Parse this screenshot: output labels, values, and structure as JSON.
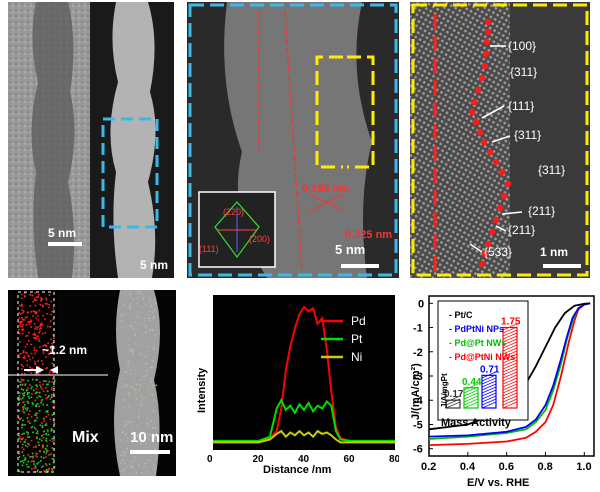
{
  "panel_a": {
    "scale_bar": "5 nm"
  },
  "panel_b": {
    "scale_bar": "5 nm"
  },
  "panel_c": {
    "scale_bar": "5 nm",
    "spacing_1": "0.195 nm",
    "spacing_2": "0.225 nm",
    "fft_labels": [
      "(220)",
      "(111)",
      "(200)"
    ]
  },
  "panel_d": {
    "scale_bar": "1 nm",
    "facets": [
      "{100}",
      "{311}",
      "{111}",
      "{311}",
      "{311}",
      "{211}",
      "{211}",
      "{533}"
    ]
  },
  "panel_e": {
    "thickness": "~1.2 nm",
    "label": "Mix"
  },
  "panel_f": {
    "scale_bar": "10 nm"
  },
  "chart_data": [
    {
      "type": "line",
      "title": "",
      "xlabel": "Distance /nm",
      "ylabel": "Intensity",
      "xlim": [
        0,
        80
      ],
      "xticks": [
        "0",
        "20",
        "40",
        "60",
        "80"
      ],
      "legend_position": "top-right",
      "series": [
        {
          "name": "Pd",
          "color": "#ff0000",
          "x": [
            0,
            10,
            20,
            25,
            28,
            30,
            32,
            34,
            36,
            38,
            40,
            42,
            44,
            46,
            48,
            50,
            52,
            54,
            56,
            60,
            70,
            80
          ],
          "y": [
            0.05,
            0.05,
            0.05,
            0.07,
            0.12,
            0.28,
            0.55,
            0.72,
            0.85,
            0.95,
            1.0,
            0.97,
            0.99,
            0.88,
            0.92,
            0.7,
            0.4,
            0.15,
            0.07,
            0.05,
            0.05,
            0.05
          ]
        },
        {
          "name": "Pt",
          "color": "#00dd00",
          "x": [
            0,
            10,
            20,
            25,
            28,
            30,
            32,
            34,
            36,
            38,
            40,
            42,
            44,
            46,
            48,
            50,
            52,
            54,
            56,
            60,
            70,
            80
          ],
          "y": [
            0.05,
            0.05,
            0.05,
            0.08,
            0.28,
            0.34,
            0.27,
            0.3,
            0.25,
            0.31,
            0.27,
            0.32,
            0.26,
            0.3,
            0.28,
            0.33,
            0.3,
            0.12,
            0.06,
            0.05,
            0.05,
            0.05
          ]
        },
        {
          "name": "Ni",
          "color": "#cccc00",
          "x": [
            0,
            10,
            20,
            25,
            28,
            30,
            32,
            34,
            36,
            38,
            40,
            42,
            44,
            46,
            48,
            50,
            52,
            54,
            56,
            60,
            70,
            80
          ],
          "y": [
            0.04,
            0.04,
            0.04,
            0.06,
            0.1,
            0.12,
            0.08,
            0.11,
            0.09,
            0.12,
            0.09,
            0.11,
            0.08,
            0.12,
            0.1,
            0.11,
            0.09,
            0.06,
            0.04,
            0.04,
            0.04,
            0.04
          ]
        }
      ]
    },
    {
      "type": "line",
      "title": "",
      "xlabel": "E/V vs. RHE",
      "ylabel": "J/(mA/cm²)",
      "xlim": [
        0.2,
        1.05
      ],
      "ylim": [
        -6.3,
        0.3
      ],
      "xticks": [
        0.2,
        0.4,
        0.6,
        0.8,
        1.0
      ],
      "yticks": [
        0,
        -1,
        -2,
        -3,
        -4,
        -5,
        -6
      ],
      "series": [
        {
          "name": "Pd@PtNi NWs",
          "color": "#ff0000",
          "x": [
            0.2,
            0.4,
            0.6,
            0.7,
            0.75,
            0.8,
            0.84,
            0.88,
            0.92,
            0.95,
            0.97,
            1.0,
            1.03
          ],
          "y": [
            -5.85,
            -5.8,
            -5.7,
            -5.55,
            -5.3,
            -4.9,
            -4.2,
            -3.0,
            -1.6,
            -0.7,
            -0.25,
            -0.05,
            0
          ]
        },
        {
          "name": "Pd@Pt NWs",
          "color": "#00bb00",
          "x": [
            0.2,
            0.4,
            0.6,
            0.7,
            0.75,
            0.8,
            0.84,
            0.88,
            0.91,
            0.94,
            0.97,
            1.0,
            1.03
          ],
          "y": [
            -5.6,
            -5.5,
            -5.35,
            -5.2,
            -4.9,
            -4.4,
            -3.6,
            -2.5,
            -1.5,
            -0.7,
            -0.2,
            -0.05,
            0
          ]
        },
        {
          "name": "PdPtNi NPs",
          "color": "#0000ff",
          "x": [
            0.2,
            0.4,
            0.6,
            0.7,
            0.75,
            0.8,
            0.84,
            0.88,
            0.91,
            0.94,
            0.97,
            1.0,
            1.03
          ],
          "y": [
            -5.5,
            -5.45,
            -5.3,
            -5.1,
            -4.8,
            -4.2,
            -3.4,
            -2.3,
            -1.4,
            -0.6,
            -0.2,
            -0.05,
            0
          ]
        },
        {
          "name": "Pt/C",
          "color": "#000000",
          "x": [
            0.2,
            0.4,
            0.5,
            0.6,
            0.65,
            0.7,
            0.75,
            0.8,
            0.85,
            0.9,
            0.95,
            1.0,
            1.03
          ],
          "y": [
            -5.2,
            -5.0,
            -4.7,
            -4.3,
            -3.9,
            -3.3,
            -2.6,
            -1.8,
            -1.0,
            -0.4,
            -0.1,
            -0.02,
            0
          ]
        }
      ],
      "inset": {
        "type": "bar",
        "xlabel": "Mass Activity",
        "ylabel": "J/A/mgPt",
        "categories": [
          "Pt/C",
          "PdPtNi NPs",
          "Pd@Pt NWs",
          "Pd@PtNi NWs"
        ],
        "values": [
          0.17,
          0.71,
          0.44,
          1.75
        ],
        "value_labels": [
          "0.17",
          "0.71",
          "0.44",
          "1.75"
        ],
        "colors": [
          "#333333",
          "#0000ff",
          "#00cc00",
          "#ff0000"
        ],
        "ylim": [
          0,
          2
        ]
      }
    }
  ]
}
